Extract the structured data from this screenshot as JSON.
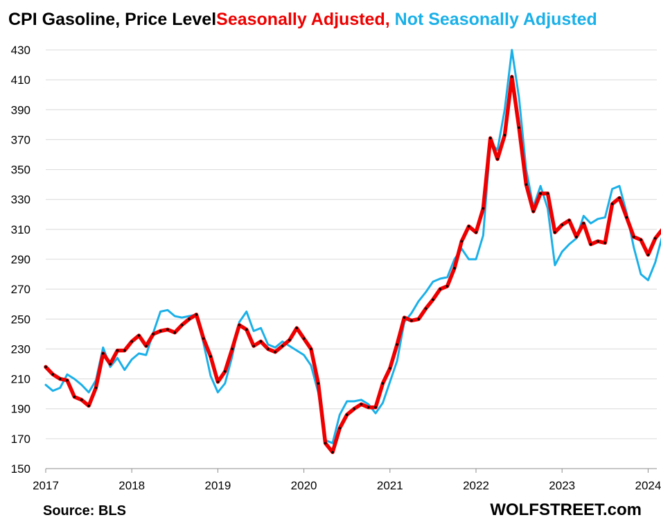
{
  "chart_data": {
    "type": "line",
    "title": "CPI Gasoline, Price Level",
    "title_parts": [
      {
        "text": "CPI Gasoline, Price Level",
        "color": "#000000"
      },
      {
        "text": "Seasonally Adjusted,",
        "color": "#ee0000"
      },
      {
        "text": " Not Seasonally Adjusted",
        "color": "#1ab0e8"
      }
    ],
    "x_start": "2017-01",
    "x_ticks": [
      "2017",
      "2018",
      "2019",
      "2020",
      "2021",
      "2022",
      "2023",
      "2024"
    ],
    "ylim": [
      150,
      430
    ],
    "y_ticks": [
      150,
      170,
      190,
      210,
      230,
      250,
      270,
      290,
      310,
      330,
      350,
      370,
      390,
      410,
      430
    ],
    "grid": true,
    "series": [
      {
        "name": "Seasonally Adjusted",
        "color": "#ee0000",
        "marker_color": "#000000",
        "values": [
          218,
          213,
          210,
          209,
          198,
          196,
          192,
          204,
          227,
          220,
          229,
          229,
          235,
          239,
          232,
          240,
          242,
          243,
          241,
          246,
          250,
          253,
          237,
          225,
          208,
          215,
          230,
          246,
          243,
          232,
          235,
          230,
          228,
          232,
          236,
          244,
          237,
          230,
          207,
          167,
          161,
          177,
          186,
          190,
          193,
          191,
          191,
          207,
          217,
          233,
          251,
          249,
          250,
          257,
          263,
          270,
          272,
          284,
          302,
          312,
          308,
          324,
          371,
          357,
          373,
          412,
          378,
          340,
          322,
          334,
          334,
          308,
          313,
          316,
          305,
          314,
          300,
          302,
          301,
          327,
          331,
          318,
          305,
          303,
          293,
          304,
          310
        ]
      },
      {
        "name": "Not Seasonally Adjusted",
        "color": "#1ab0e8",
        "values": [
          206,
          202,
          204,
          213,
          210,
          206,
          201,
          209,
          231,
          218,
          224,
          216,
          223,
          227,
          226,
          241,
          255,
          256,
          252,
          251,
          252,
          253,
          234,
          212,
          201,
          207,
          225,
          248,
          255,
          242,
          244,
          233,
          231,
          235,
          232,
          229,
          226,
          219,
          201,
          169,
          167,
          186,
          195,
          195,
          196,
          193,
          187,
          194,
          208,
          222,
          248,
          254,
          262,
          268,
          275,
          277,
          278,
          290,
          297,
          290,
          290,
          306,
          368,
          363,
          390,
          430,
          398,
          350,
          325,
          339,
          324,
          286,
          295,
          300,
          304,
          319,
          314,
          317,
          318,
          337,
          339,
          321,
          298,
          280,
          276,
          288,
          306
        ]
      }
    ]
  },
  "footer": {
    "source": "Source: BLS",
    "brand": "WOLFSTREET.com"
  }
}
